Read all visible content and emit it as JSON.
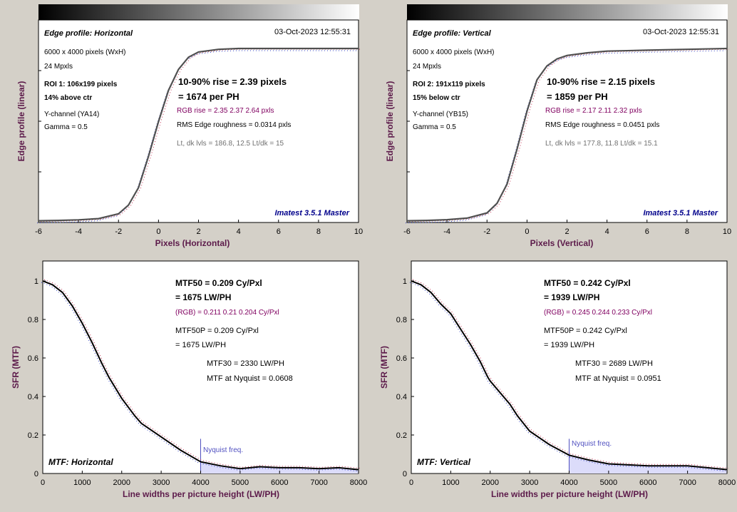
{
  "colors": {
    "background": "#d4d0c8",
    "axis_label": "#5c1a4a",
    "watermark": "#00008b",
    "rgb_text": "#800060",
    "gray_text": "#707070",
    "nyquist_line": "#5050c0",
    "nyquist_fill": "#dcdcfa",
    "curve": "#505050",
    "mtf_curve": "#000000"
  },
  "edge_panels": [
    {
      "title": "Edge profile: Horizontal",
      "timestamp": "03-Oct-2023 12:55:31",
      "info_lines": [
        "6000 x 4000 pixels (WxH)",
        "24 Mpxls"
      ],
      "roi_lines": [
        "ROI 1:  106x199 pixels",
        "14% above ctr"
      ],
      "channel_lines": [
        "Y-channel  (YA14)",
        "Gamma = 0.5"
      ],
      "rise_line1": "10-90% rise = 2.39 pixels",
      "rise_line2": "= 1674 per PH",
      "rgb_rise": "RGB rise = 2.35  2.37  2.64 pxls",
      "roughness": "RMS Edge roughness = 0.0314 pxls",
      "levels": "Lt, dk lvls = 186.8, 12.5   Lt/dk = 15",
      "watermark": "Imatest 3.5.1 Master",
      "xlabel": "Pixels (Horizontal)",
      "ylabel": "Edge profile (linear)",
      "x_ticks": [
        "-6",
        "-4",
        "-2",
        "0",
        "2",
        "4",
        "6",
        "8",
        "10"
      ]
    },
    {
      "title": "Edge profile: Vertical",
      "timestamp": "03-Oct-2023 12:55:31",
      "info_lines": [
        "6000 x 4000 pixels (WxH)",
        "24 Mpxls"
      ],
      "roi_lines": [
        "ROI 2:  191x119 pixels",
        "15% below ctr"
      ],
      "channel_lines": [
        "Y-channel  (YB15)",
        "Gamma = 0.5"
      ],
      "rise_line1": "10-90% rise = 2.15 pixels",
      "rise_line2": "= 1859 per PH",
      "rgb_rise": "RGB rise = 2.17  2.11  2.32 pxls",
      "roughness": "RMS Edge roughness = 0.0451 pxls",
      "levels": "Lt, dk lvls = 177.8, 11.8   Lt/dk = 15.1",
      "watermark": "Imatest 3.5.1 Master",
      "xlabel": "Pixels (Vertical)",
      "ylabel": "Edge profile (linear)",
      "x_ticks": [
        "-6",
        "-4",
        "-2",
        "0",
        "2",
        "4",
        "6",
        "8",
        "10"
      ]
    }
  ],
  "mtf_panels": [
    {
      "label": "MTF: Horizontal",
      "mtf50_line1": "MTF50 = 0.209 Cy/Pxl",
      "mtf50_line2": "= 1675 LW/PH",
      "rgb_line": "(RGB) = 0.211  0.21  0.204 Cy/Pxl",
      "mtf50p_line1": "MTF50P = 0.209 Cy/Pxl",
      "mtf50p_line2": "= 1675 LW/PH",
      "mtf30": "MTF30 = 2330 LW/PH",
      "nyquist_mtf": "MTF at Nyquist = 0.0608",
      "nyquist_label": "Nyquist freq.",
      "xlabel": "Line widths per picture height (LW/PH)",
      "ylabel": "SFR (MTF)",
      "x_ticks": [
        "0",
        "1000",
        "2000",
        "3000",
        "4000",
        "5000",
        "6000",
        "7000",
        "8000"
      ],
      "y_ticks": [
        "0",
        "0.2",
        "0.4",
        "0.6",
        "0.8",
        "1"
      ]
    },
    {
      "label": "MTF: Vertical",
      "mtf50_line1": "MTF50 = 0.242 Cy/Pxl",
      "mtf50_line2": "= 1939 LW/PH",
      "rgb_line": "(RGB) = 0.245  0.244  0.233 Cy/Pxl",
      "mtf50p_line1": "MTF50P = 0.242 Cy/Pxl",
      "mtf50p_line2": "= 1939 LW/PH",
      "mtf30": "MTF30 = 2689 LW/PH",
      "nyquist_mtf": "MTF at Nyquist = 0.0951",
      "nyquist_label": "Nyquist freq.",
      "xlabel": "Line widths per picture height (LW/PH)",
      "ylabel": "SFR (MTF)",
      "x_ticks": [
        "0",
        "1000",
        "2000",
        "3000",
        "4000",
        "5000",
        "6000",
        "7000",
        "8000"
      ],
      "y_ticks": [
        "0",
        "0.2",
        "0.4",
        "0.6",
        "0.8",
        "1"
      ]
    }
  ],
  "chart_data": [
    {
      "type": "line",
      "xlim": [
        -6,
        10
      ],
      "ylim": [
        0,
        1
      ],
      "series": [
        {
          "x": [
            -6,
            -5,
            -4,
            -3,
            -2,
            -1.5,
            -1,
            -0.5,
            0,
            0.5,
            1,
            1.5,
            2,
            3,
            4,
            6,
            8,
            10
          ],
          "y": [
            0.01,
            0.012,
            0.015,
            0.022,
            0.05,
            0.1,
            0.2,
            0.38,
            0.58,
            0.76,
            0.88,
            0.95,
            0.98,
            0.995,
            1.0,
            1.0,
            1.0,
            1.0
          ]
        }
      ]
    },
    {
      "type": "line",
      "xlim": [
        -6,
        10
      ],
      "ylim": [
        0,
        1
      ],
      "series": [
        {
          "x": [
            -6,
            -5,
            -4,
            -3,
            -2,
            -1.5,
            -1,
            -0.5,
            0,
            0.5,
            1,
            1.5,
            2,
            3,
            4,
            6,
            8,
            10
          ],
          "y": [
            0.01,
            0.012,
            0.016,
            0.025,
            0.055,
            0.11,
            0.22,
            0.42,
            0.64,
            0.82,
            0.9,
            0.94,
            0.96,
            0.975,
            0.985,
            0.99,
            0.995,
            1.0
          ]
        }
      ]
    },
    {
      "type": "line",
      "xlim": [
        0,
        8000
      ],
      "ylim": [
        0,
        1
      ],
      "series": [
        {
          "x": [
            0,
            250,
            500,
            750,
            1000,
            1250,
            1500,
            1675,
            2000,
            2330,
            2500,
            3000,
            3500,
            4000,
            4500,
            5000,
            5500,
            6000,
            6500,
            7000,
            7500,
            8000
          ],
          "y": [
            1.0,
            0.98,
            0.94,
            0.87,
            0.78,
            0.68,
            0.57,
            0.5,
            0.39,
            0.3,
            0.26,
            0.19,
            0.12,
            0.0608,
            0.04,
            0.025,
            0.035,
            0.03,
            0.03,
            0.025,
            0.03,
            0.02
          ]
        }
      ],
      "nyquist": 4000
    },
    {
      "type": "line",
      "xlim": [
        0,
        8000
      ],
      "ylim": [
        0,
        1
      ],
      "series": [
        {
          "x": [
            0,
            250,
            500,
            750,
            1000,
            1250,
            1500,
            1750,
            1939,
            2000,
            2500,
            2689,
            3000,
            3500,
            4000,
            4500,
            5000,
            5500,
            6000,
            6500,
            7000,
            7500,
            8000
          ],
          "y": [
            1.0,
            0.98,
            0.94,
            0.88,
            0.83,
            0.75,
            0.67,
            0.58,
            0.5,
            0.48,
            0.36,
            0.3,
            0.22,
            0.15,
            0.0951,
            0.07,
            0.05,
            0.045,
            0.04,
            0.04,
            0.04,
            0.03,
            0.02
          ]
        }
      ],
      "nyquist": 4000
    }
  ]
}
